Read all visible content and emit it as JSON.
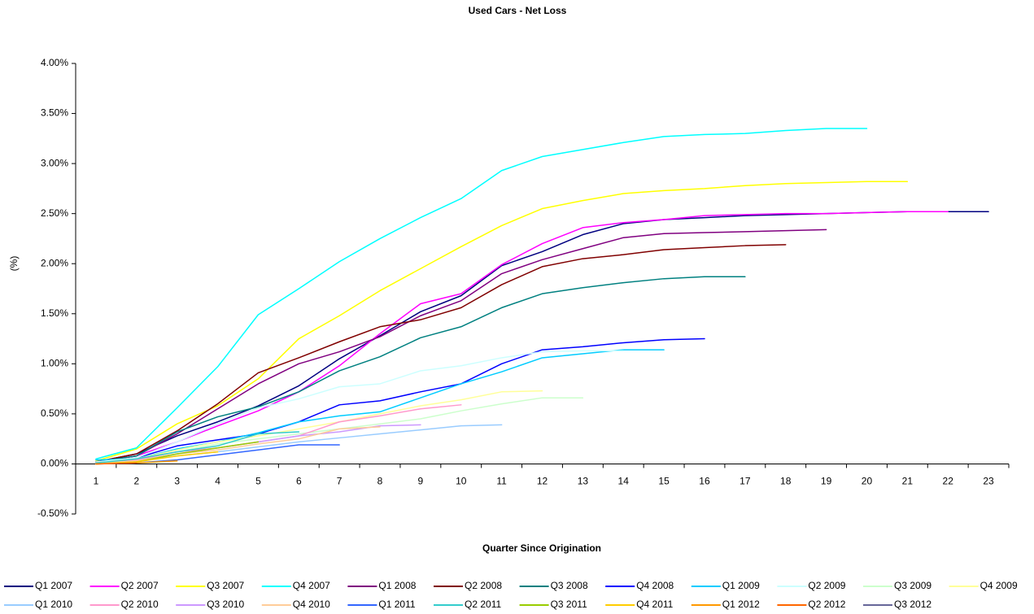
{
  "chart_data": {
    "type": "line",
    "title": "Used Cars - Net Loss",
    "xlabel": "Quarter Since Origination",
    "ylabel": "(%)",
    "categories": [
      "1",
      "2",
      "3",
      "4",
      "5",
      "6",
      "7",
      "8",
      "9",
      "10",
      "11",
      "12",
      "13",
      "14",
      "15",
      "16",
      "17",
      "18",
      "19",
      "20",
      "21",
      "22",
      "23"
    ],
    "ylim": [
      -0.5,
      4
    ],
    "yticks": [
      {
        "value": -0.5,
        "label": "-0.50%"
      },
      {
        "value": 0,
        "label": "0.00%"
      },
      {
        "value": 0.5,
        "label": "0.50%"
      },
      {
        "value": 1,
        "label": "1.00%"
      },
      {
        "value": 1.5,
        "label": "1.50%"
      },
      {
        "value": 2,
        "label": "2.00%"
      },
      {
        "value": 2.5,
        "label": "2.50%"
      },
      {
        "value": 3,
        "label": "3.00%"
      },
      {
        "value": 3.5,
        "label": "3.50%"
      },
      {
        "value": 4,
        "label": "4.00%"
      }
    ],
    "grid": false,
    "legend": "bottom",
    "series": [
      {
        "name": "Q1 2007",
        "color": "#000080",
        "values": [
          0.02,
          0.1,
          0.28,
          0.42,
          0.58,
          0.78,
          1.05,
          1.28,
          1.52,
          1.68,
          1.98,
          2.12,
          2.29,
          2.4,
          2.44,
          2.46,
          2.48,
          2.49,
          2.5,
          2.51,
          2.52,
          2.52,
          2.52
        ]
      },
      {
        "name": "Q2 2007",
        "color": "#ff00ff",
        "values": [
          0.02,
          0.08,
          0.22,
          0.38,
          0.53,
          0.72,
          0.98,
          1.3,
          1.6,
          1.7,
          1.99,
          2.2,
          2.36,
          2.41,
          2.44,
          2.48,
          2.49,
          2.5,
          2.5,
          2.51,
          2.52,
          2.52,
          null
        ]
      },
      {
        "name": "Q3 2007",
        "color": "#ffff00",
        "values": [
          0.03,
          0.15,
          0.4,
          0.58,
          0.85,
          1.25,
          1.48,
          1.73,
          1.95,
          2.17,
          2.38,
          2.55,
          2.63,
          2.7,
          2.73,
          2.75,
          2.78,
          2.8,
          2.81,
          2.82,
          2.82,
          null,
          null
        ]
      },
      {
        "name": "Q4 2007",
        "color": "#00ffff",
        "values": [
          0.05,
          0.16,
          0.56,
          0.97,
          1.49,
          1.75,
          2.02,
          2.25,
          2.46,
          2.65,
          2.93,
          3.07,
          3.14,
          3.21,
          3.27,
          3.29,
          3.3,
          3.33,
          3.35,
          3.35,
          null,
          null,
          null
        ]
      },
      {
        "name": "Q1 2008",
        "color": "#800080",
        "values": [
          0.02,
          0.08,
          0.3,
          0.55,
          0.8,
          1.0,
          1.12,
          1.27,
          1.48,
          1.63,
          1.9,
          2.04,
          2.15,
          2.26,
          2.3,
          2.31,
          2.32,
          2.33,
          2.34,
          null,
          null,
          null,
          null
        ]
      },
      {
        "name": "Q2 2008",
        "color": "#800000",
        "values": [
          0.02,
          0.1,
          0.33,
          0.6,
          0.91,
          1.06,
          1.22,
          1.37,
          1.44,
          1.56,
          1.79,
          1.97,
          2.05,
          2.09,
          2.14,
          2.16,
          2.18,
          2.19,
          null,
          null,
          null,
          null,
          null
        ]
      },
      {
        "name": "Q3 2008",
        "color": "#008080",
        "values": [
          0.02,
          0.08,
          0.32,
          0.47,
          0.57,
          0.72,
          0.93,
          1.07,
          1.26,
          1.37,
          1.56,
          1.7,
          1.76,
          1.81,
          1.85,
          1.87,
          1.87,
          null,
          null,
          null,
          null,
          null,
          null
        ]
      },
      {
        "name": "Q4 2008",
        "color": "#0000ff",
        "values": [
          0.02,
          0.06,
          0.18,
          0.24,
          0.3,
          0.42,
          0.59,
          0.63,
          0.72,
          0.8,
          1.0,
          1.14,
          1.17,
          1.21,
          1.24,
          1.25,
          null,
          null,
          null,
          null,
          null,
          null,
          null
        ]
      },
      {
        "name": "Q1 2009",
        "color": "#00ccff",
        "values": [
          0.04,
          0.05,
          0.15,
          0.22,
          0.31,
          0.42,
          0.48,
          0.52,
          0.66,
          0.8,
          0.92,
          1.06,
          1.1,
          1.14,
          1.14,
          null,
          null,
          null,
          null,
          null,
          null,
          null,
          null
        ]
      },
      {
        "name": "Q2 2009",
        "color": "#ccffff",
        "values": [
          0.02,
          0.06,
          0.22,
          0.4,
          0.56,
          0.65,
          0.77,
          0.8,
          0.93,
          0.98,
          1.06,
          1.12,
          1.13,
          1.13,
          null,
          null,
          null,
          null,
          null,
          null,
          null,
          null,
          null
        ]
      },
      {
        "name": "Q3 2009",
        "color": "#ccffcc",
        "values": [
          0.01,
          0.04,
          0.12,
          0.2,
          0.25,
          0.3,
          0.35,
          0.4,
          0.45,
          0.53,
          0.6,
          0.66,
          0.66,
          null,
          null,
          null,
          null,
          null,
          null,
          null,
          null,
          null,
          null
        ]
      },
      {
        "name": "Q4 2009",
        "color": "#ffff99",
        "values": [
          0.01,
          0.05,
          0.14,
          0.22,
          0.28,
          0.35,
          0.42,
          0.5,
          0.58,
          0.64,
          0.72,
          0.73,
          null,
          null,
          null,
          null,
          null,
          null,
          null,
          null,
          null,
          null,
          null
        ]
      },
      {
        "name": "Q1 2010",
        "color": "#99ccff",
        "values": [
          0.01,
          0.03,
          0.08,
          0.12,
          0.17,
          0.22,
          0.26,
          0.3,
          0.34,
          0.38,
          0.39,
          null,
          null,
          null,
          null,
          null,
          null,
          null,
          null,
          null,
          null,
          null,
          null
        ]
      },
      {
        "name": "Q2 2010",
        "color": "#ff99cc",
        "values": [
          0.01,
          0.04,
          0.12,
          0.16,
          0.22,
          0.28,
          0.42,
          0.48,
          0.55,
          0.59,
          null,
          null,
          null,
          null,
          null,
          null,
          null,
          null,
          null,
          null,
          null,
          null,
          null
        ]
      },
      {
        "name": "Q3 2010",
        "color": "#cc99ff",
        "values": [
          0.01,
          0.03,
          0.1,
          0.16,
          0.22,
          0.28,
          0.32,
          0.38,
          0.39,
          null,
          null,
          null,
          null,
          null,
          null,
          null,
          null,
          null,
          null,
          null,
          null,
          null,
          null
        ]
      },
      {
        "name": "Q4 2010",
        "color": "#ffcc99",
        "values": [
          0.01,
          0.03,
          0.1,
          0.14,
          0.2,
          0.25,
          0.35,
          0.37,
          null,
          null,
          null,
          null,
          null,
          null,
          null,
          null,
          null,
          null,
          null,
          null,
          null,
          null,
          null
        ]
      },
      {
        "name": "Q1 2011",
        "color": "#3366ff",
        "values": [
          0,
          0.01,
          0.04,
          0.09,
          0.14,
          0.19,
          0.19,
          null,
          null,
          null,
          null,
          null,
          null,
          null,
          null,
          null,
          null,
          null,
          null,
          null,
          null,
          null,
          null
        ]
      },
      {
        "name": "Q2 2011",
        "color": "#33cccc",
        "values": [
          0.01,
          0.05,
          0.12,
          0.18,
          0.3,
          0.32,
          null,
          null,
          null,
          null,
          null,
          null,
          null,
          null,
          null,
          null,
          null,
          null,
          null,
          null,
          null,
          null,
          null
        ]
      },
      {
        "name": "Q3 2011",
        "color": "#99cc00",
        "values": [
          0,
          0.02,
          0.1,
          0.16,
          0.22,
          null,
          null,
          null,
          null,
          null,
          null,
          null,
          null,
          null,
          null,
          null,
          null,
          null,
          null,
          null,
          null,
          null,
          null
        ]
      },
      {
        "name": "Q4 2011",
        "color": "#ffcc00",
        "values": [
          0,
          0.02,
          0.08,
          0.12,
          null,
          null,
          null,
          null,
          null,
          null,
          null,
          null,
          null,
          null,
          null,
          null,
          null,
          null,
          null,
          null,
          null,
          null,
          null
        ]
      },
      {
        "name": "Q1 2012",
        "color": "#ff9900",
        "values": [
          0,
          0.01,
          0.03,
          null,
          null,
          null,
          null,
          null,
          null,
          null,
          null,
          null,
          null,
          null,
          null,
          null,
          null,
          null,
          null,
          null,
          null,
          null,
          null
        ]
      },
      {
        "name": "Q2 2012",
        "color": "#ff6600",
        "values": [
          0,
          0.01,
          null,
          null,
          null,
          null,
          null,
          null,
          null,
          null,
          null,
          null,
          null,
          null,
          null,
          null,
          null,
          null,
          null,
          null,
          null,
          null,
          null
        ]
      },
      {
        "name": "Q3 2012",
        "color": "#666699",
        "values": [
          0,
          null,
          null,
          null,
          null,
          null,
          null,
          null,
          null,
          null,
          null,
          null,
          null,
          null,
          null,
          null,
          null,
          null,
          null,
          null,
          null,
          null,
          null
        ]
      }
    ]
  }
}
